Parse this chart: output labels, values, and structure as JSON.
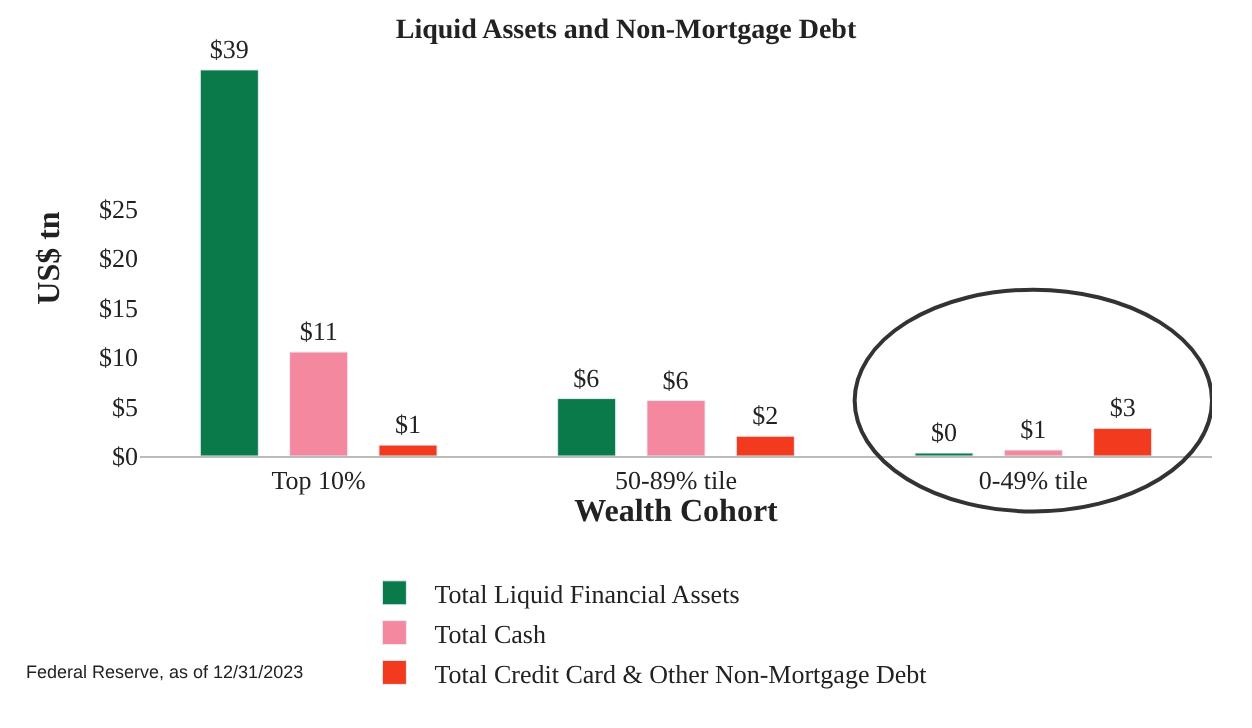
{
  "chart_data": {
    "type": "bar",
    "title": "Liquid Assets and Non-Mortgage Debt",
    "xlabel": "Wealth Cohort",
    "ylabel": "US$ tn",
    "categories": [
      "Top 10%",
      "50-89% tile",
      "0-49% tile"
    ],
    "series": [
      {
        "name": "Total Liquid Financial Assets",
        "color": "#0b7a4b",
        "values": [
          39,
          5.8,
          0.3
        ],
        "value_labels": [
          "$39",
          "$6",
          "$0"
        ]
      },
      {
        "name": "Total Cash",
        "color": "#f4889f",
        "values": [
          10.5,
          5.6,
          0.6
        ],
        "value_labels": [
          "$11",
          "$6",
          "$1"
        ]
      },
      {
        "name": "Total Credit Card & Other Non-Mortgage Debt",
        "color": "#f23b1e",
        "values": [
          1.1,
          2,
          2.8
        ],
        "value_labels": [
          "$1",
          "$2",
          "$3"
        ]
      }
    ],
    "ylim": [
      0,
      40
    ],
    "yticks": [
      {
        "value": 0,
        "label": "$0"
      },
      {
        "value": 5,
        "label": "$5"
      },
      {
        "value": 10,
        "label": "$10"
      },
      {
        "value": 15,
        "label": "$15"
      },
      {
        "value": 20,
        "label": "$20"
      },
      {
        "value": 25,
        "label": "$25"
      }
    ],
    "legend": "bottom",
    "annotations": [
      "Federal Reserve, as of 12/31/2023"
    ]
  }
}
